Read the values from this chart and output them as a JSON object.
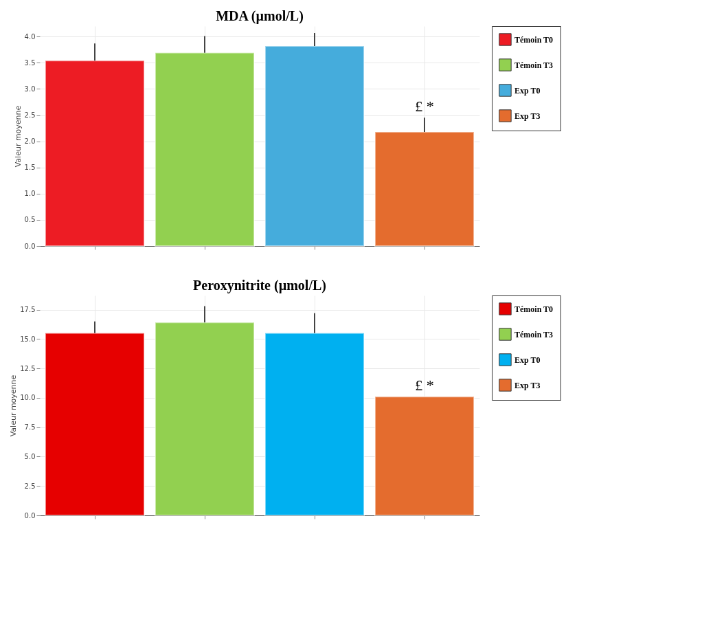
{
  "chart_data": [
    {
      "type": "bar",
      "title": "MDA (µmol/L)",
      "ylabel": "Valeur moyenne",
      "categories": [
        null,
        null,
        null,
        null
      ],
      "series": [
        {
          "name": "Témoin T0",
          "color": "#ed1c24",
          "values": [
            3.54,
            null,
            null,
            null
          ],
          "errors": [
            [
              3.54,
              3.87
            ],
            null,
            null,
            null
          ]
        },
        {
          "name": "Témoin T3",
          "color": "#92d050",
          "values": [
            null,
            3.69,
            null,
            null
          ],
          "errors": [
            null,
            [
              3.69,
              4.01
            ],
            null,
            null
          ]
        },
        {
          "name": "Exp T0",
          "color": "#45acdc",
          "values": [
            null,
            null,
            3.82,
            null
          ],
          "errors": [
            null,
            null,
            [
              3.82,
              4.07
            ],
            null
          ]
        },
        {
          "name": "Exp T3",
          "color": "#e46c2e",
          "values": [
            null,
            null,
            null,
            2.18
          ],
          "errors": [
            null,
            null,
            null,
            [
              2.18,
              2.45
            ]
          ]
        }
      ],
      "ylim": [
        0,
        4.2
      ],
      "yticks": [
        {
          "value": 0,
          "label": "0.0"
        },
        {
          "value": 0.5,
          "label": "0.5"
        },
        {
          "value": 1,
          "label": "1.0"
        },
        {
          "value": 1.5,
          "label": "1.5"
        },
        {
          "value": 2,
          "label": "2.0"
        },
        {
          "value": 2.5,
          "label": "2.5"
        },
        {
          "value": 3,
          "label": "3.0"
        },
        {
          "value": 3.5,
          "label": "3.5"
        },
        {
          "value": 4,
          "label": "4.0"
        }
      ],
      "grid": true,
      "legend": "right",
      "annotations": [
        "£ *"
      ]
    },
    {
      "type": "bar",
      "title": "Peroxynitrite (µmol/L)",
      "ylabel": "Valeur moyenne",
      "categories": [
        null,
        null,
        null,
        null
      ],
      "series": [
        {
          "name": "Témoin T0",
          "color": "#e60000",
          "values": [
            15.5,
            null,
            null,
            null
          ],
          "errors": [
            [
              15.5,
              16.5
            ],
            null,
            null,
            null
          ]
        },
        {
          "name": "Témoin T3",
          "color": "#92d050",
          "values": [
            null,
            16.4,
            null,
            null
          ],
          "errors": [
            null,
            [
              16.4,
              17.8
            ],
            null,
            null
          ]
        },
        {
          "name": "Exp T0",
          "color": "#00b0f0",
          "values": [
            null,
            null,
            15.5,
            null
          ],
          "errors": [
            null,
            null,
            [
              15.5,
              17.2
            ],
            null
          ]
        },
        {
          "name": "Exp T3",
          "color": "#e46c2e",
          "values": [
            null,
            null,
            null,
            10.1
          ]
        }
      ],
      "ylim": [
        0,
        18.7
      ],
      "yticks": [
        {
          "value": 0,
          "label": "0.0"
        },
        {
          "value": 2.5,
          "label": "2.5"
        },
        {
          "value": 5,
          "label": "5.0"
        },
        {
          "value": 7.5,
          "label": "7.5"
        },
        {
          "value": 10,
          "label": "10.0"
        },
        {
          "value": 12.5,
          "label": "12.5"
        },
        {
          "value": 15,
          "label": "15.0"
        },
        {
          "value": 17.5,
          "label": "17.5"
        }
      ],
      "grid": true,
      "legend": "right",
      "annotations": [
        "£ *"
      ]
    }
  ]
}
